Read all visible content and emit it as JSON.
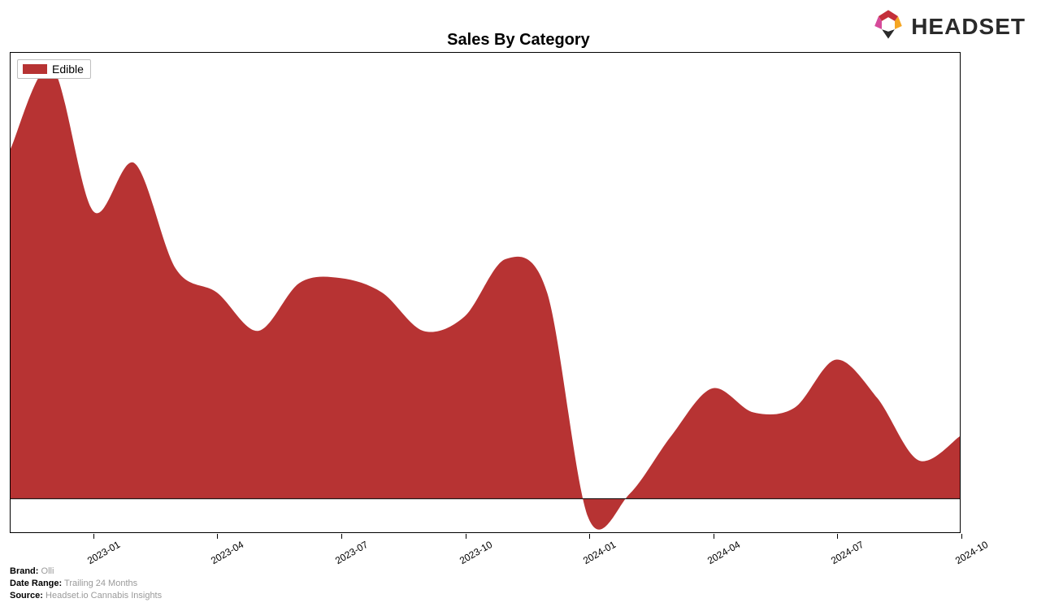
{
  "title": "Sales By Category",
  "logo_text": "HEADSET",
  "chart": {
    "type": "area",
    "series_name": "Edible",
    "series_color": "#b73333",
    "border_color": "#000000",
    "background_color": "#ffffff",
    "ylim": [
      0,
      100
    ],
    "baseline_y": 7,
    "data": [
      {
        "x": "2022-11",
        "y": 80
      },
      {
        "x": "2022-12",
        "y": 97
      },
      {
        "x": "2023-01",
        "y": 67
      },
      {
        "x": "2023-02",
        "y": 77
      },
      {
        "x": "2023-03",
        "y": 55
      },
      {
        "x": "2023-04",
        "y": 50
      },
      {
        "x": "2023-05",
        "y": 42
      },
      {
        "x": "2023-06",
        "y": 52
      },
      {
        "x": "2023-07",
        "y": 53
      },
      {
        "x": "2023-08",
        "y": 50
      },
      {
        "x": "2023-09",
        "y": 42
      },
      {
        "x": "2023-10",
        "y": 45
      },
      {
        "x": "2023-11",
        "y": 57
      },
      {
        "x": "2023-12",
        "y": 50
      },
      {
        "x": "2024-01",
        "y": 3
      },
      {
        "x": "2024-02",
        "y": 8
      },
      {
        "x": "2024-03",
        "y": 20
      },
      {
        "x": "2024-04",
        "y": 30
      },
      {
        "x": "2024-05",
        "y": 25
      },
      {
        "x": "2024-06",
        "y": 26
      },
      {
        "x": "2024-07",
        "y": 36
      },
      {
        "x": "2024-08",
        "y": 28
      },
      {
        "x": "2024-09",
        "y": 15
      },
      {
        "x": "2024-10",
        "y": 20
      }
    ],
    "x_ticks": [
      "2023-01",
      "2023-04",
      "2023-07",
      "2023-10",
      "2024-01",
      "2024-04",
      "2024-07",
      "2024-10"
    ],
    "x_tick_rotation_deg": -30,
    "x_tick_fontsize": 12,
    "smoothing": "cubic"
  },
  "meta": {
    "brand_label": "Brand:",
    "brand_value": "Olli",
    "date_range_label": "Date Range:",
    "date_range_value": "Trailing 24 Months",
    "source_label": "Source:",
    "source_value": "Headset.io Cannabis Insights"
  },
  "logo_colors": {
    "top": "#c42f3a",
    "right": "#f5a623",
    "bottom": "#2a2a2a",
    "left": "#d64a9a",
    "inner": "#3a4a6a"
  }
}
